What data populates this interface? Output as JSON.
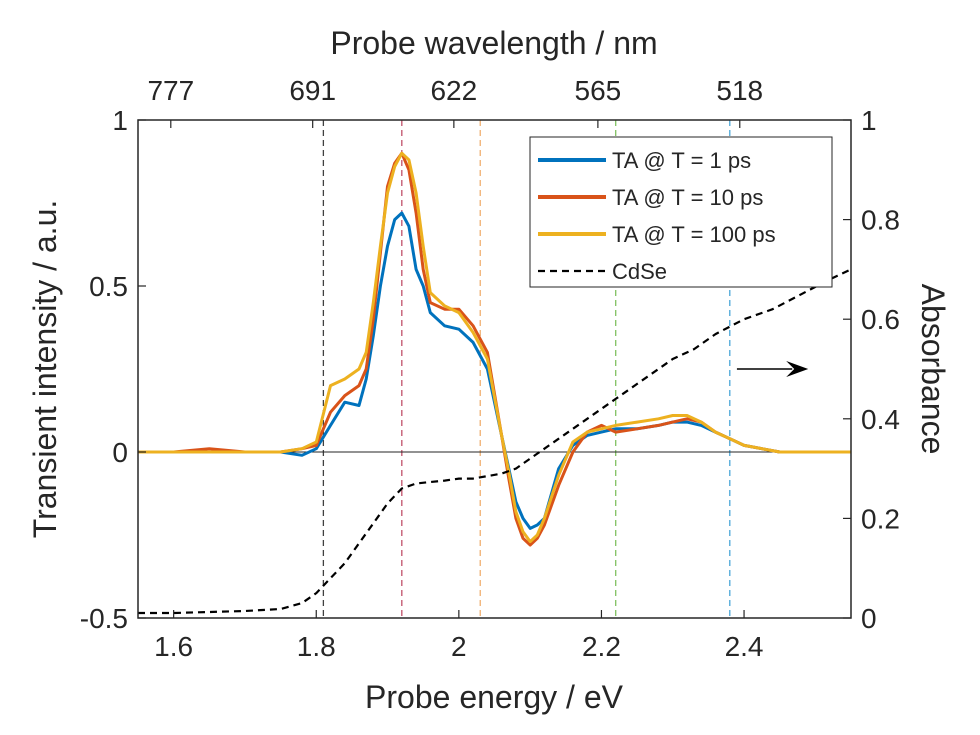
{
  "chart_data": {
    "type": "line",
    "xlabel": "Probe energy / eV",
    "ylabel": "Transient intensity / a.u.",
    "y2label": "Absorbance",
    "x2label": "Probe wavelength / nm",
    "xlim": [
      1.55,
      2.55
    ],
    "ylim": [
      -0.5,
      1
    ],
    "y2lim": [
      0,
      1
    ],
    "xticks": [
      1.6,
      1.8,
      2.0,
      2.2,
      2.4
    ],
    "xtick_labels": [
      "1.6",
      "1.8",
      "2",
      "2.2",
      "2.4"
    ],
    "yticks": [
      -0.5,
      0,
      0.5,
      1
    ],
    "ytick_labels": [
      "-0.5",
      "0",
      "0.5",
      "1"
    ],
    "y2ticks": [
      0,
      0.2,
      0.4,
      0.6,
      0.8,
      1
    ],
    "y2tick_labels": [
      "0",
      "0.2",
      "0.4",
      "0.6",
      "0.8",
      "1"
    ],
    "top_ticks": [
      {
        "energy": 1.596,
        "label": "777"
      },
      {
        "energy": 1.795,
        "label": "691"
      },
      {
        "energy": 1.993,
        "label": "622"
      },
      {
        "energy": 2.195,
        "label": "565"
      },
      {
        "energy": 2.394,
        "label": "518"
      }
    ],
    "legend_position": "top-right",
    "vlines": [
      {
        "x": 1.81,
        "color": "#404040"
      },
      {
        "x": 1.92,
        "color": "#c0506a"
      },
      {
        "x": 2.03,
        "color": "#f0b070"
      },
      {
        "x": 2.22,
        "color": "#80c060"
      },
      {
        "x": 2.38,
        "color": "#4aa6d8"
      }
    ],
    "annotation_arrow": {
      "x_from": 2.39,
      "x_to": 2.49,
      "y": 0.25,
      "direction": "right"
    },
    "series": [
      {
        "name": "TA @ T = 1 ps",
        "color": "#0072BD",
        "axis": "left",
        "x": [
          1.55,
          1.6,
          1.65,
          1.7,
          1.75,
          1.78,
          1.8,
          1.82,
          1.84,
          1.86,
          1.87,
          1.88,
          1.89,
          1.9,
          1.91,
          1.92,
          1.93,
          1.94,
          1.95,
          1.96,
          1.98,
          2.0,
          2.02,
          2.04,
          2.06,
          2.07,
          2.08,
          2.09,
          2.1,
          2.11,
          2.12,
          2.14,
          2.16,
          2.18,
          2.2,
          2.22,
          2.25,
          2.28,
          2.3,
          2.32,
          2.34,
          2.36,
          2.38,
          2.4,
          2.45,
          2.5,
          2.55
        ],
        "y": [
          0.0,
          0.0,
          0.0,
          0.0,
          0.0,
          -0.01,
          0.01,
          0.08,
          0.15,
          0.14,
          0.22,
          0.35,
          0.5,
          0.62,
          0.7,
          0.72,
          0.68,
          0.55,
          0.5,
          0.42,
          0.38,
          0.37,
          0.33,
          0.25,
          0.05,
          -0.05,
          -0.15,
          -0.2,
          -0.23,
          -0.22,
          -0.2,
          -0.05,
          0.02,
          0.05,
          0.06,
          0.07,
          0.07,
          0.08,
          0.09,
          0.09,
          0.08,
          0.06,
          0.04,
          0.02,
          0.0,
          0.0,
          0.0
        ]
      },
      {
        "name": "TA @ T = 10 ps",
        "color": "#D95319",
        "axis": "left",
        "x": [
          1.55,
          1.6,
          1.65,
          1.7,
          1.75,
          1.78,
          1.8,
          1.82,
          1.84,
          1.86,
          1.87,
          1.88,
          1.89,
          1.9,
          1.91,
          1.92,
          1.93,
          1.94,
          1.95,
          1.96,
          1.98,
          2.0,
          2.02,
          2.04,
          2.06,
          2.07,
          2.08,
          2.09,
          2.1,
          2.11,
          2.12,
          2.14,
          2.16,
          2.18,
          2.2,
          2.22,
          2.25,
          2.28,
          2.3,
          2.32,
          2.34,
          2.36,
          2.38,
          2.4,
          2.45,
          2.5,
          2.55
        ],
        "y": [
          0.0,
          0.0,
          0.01,
          0.0,
          0.0,
          0.01,
          0.02,
          0.12,
          0.17,
          0.2,
          0.25,
          0.4,
          0.6,
          0.8,
          0.87,
          0.9,
          0.85,
          0.72,
          0.55,
          0.45,
          0.43,
          0.43,
          0.38,
          0.3,
          0.05,
          -0.08,
          -0.2,
          -0.26,
          -0.28,
          -0.26,
          -0.22,
          -0.1,
          0.0,
          0.06,
          0.08,
          0.06,
          0.07,
          0.08,
          0.09,
          0.1,
          0.09,
          0.06,
          0.04,
          0.02,
          0.0,
          0.0,
          0.0
        ]
      },
      {
        "name": "TA @ T = 100 ps",
        "color": "#EDB120",
        "axis": "left",
        "x": [
          1.55,
          1.6,
          1.65,
          1.7,
          1.75,
          1.78,
          1.8,
          1.82,
          1.84,
          1.86,
          1.87,
          1.88,
          1.89,
          1.9,
          1.91,
          1.92,
          1.93,
          1.94,
          1.95,
          1.96,
          1.98,
          2.0,
          2.02,
          2.04,
          2.06,
          2.07,
          2.08,
          2.09,
          2.1,
          2.11,
          2.12,
          2.14,
          2.16,
          2.18,
          2.2,
          2.22,
          2.25,
          2.28,
          2.3,
          2.32,
          2.34,
          2.36,
          2.38,
          2.4,
          2.45,
          2.5,
          2.55
        ],
        "y": [
          0.0,
          0.0,
          0.0,
          0.0,
          0.0,
          0.01,
          0.03,
          0.2,
          0.22,
          0.25,
          0.3,
          0.45,
          0.62,
          0.78,
          0.86,
          0.9,
          0.88,
          0.78,
          0.62,
          0.48,
          0.44,
          0.42,
          0.36,
          0.28,
          0.05,
          -0.06,
          -0.18,
          -0.24,
          -0.27,
          -0.25,
          -0.2,
          -0.07,
          0.03,
          0.06,
          0.07,
          0.08,
          0.09,
          0.1,
          0.11,
          0.11,
          0.09,
          0.06,
          0.04,
          0.02,
          0.0,
          0.0,
          0.0
        ]
      },
      {
        "name": "CdSe",
        "color": "#000000",
        "dash": true,
        "axis": "right",
        "x": [
          1.55,
          1.6,
          1.65,
          1.7,
          1.75,
          1.78,
          1.8,
          1.82,
          1.84,
          1.86,
          1.88,
          1.9,
          1.92,
          1.94,
          1.96,
          1.98,
          2.0,
          2.02,
          2.04,
          2.06,
          2.08,
          2.1,
          2.12,
          2.14,
          2.16,
          2.18,
          2.2,
          2.22,
          2.25,
          2.28,
          2.3,
          2.33,
          2.36,
          2.4,
          2.44,
          2.48,
          2.52,
          2.55
        ],
        "y": [
          0.01,
          0.01,
          0.012,
          0.014,
          0.018,
          0.03,
          0.05,
          0.08,
          0.11,
          0.15,
          0.19,
          0.23,
          0.26,
          0.27,
          0.273,
          0.276,
          0.28,
          0.28,
          0.285,
          0.29,
          0.3,
          0.32,
          0.34,
          0.36,
          0.38,
          0.4,
          0.42,
          0.44,
          0.47,
          0.5,
          0.52,
          0.54,
          0.57,
          0.6,
          0.62,
          0.65,
          0.68,
          0.7
        ]
      }
    ]
  }
}
